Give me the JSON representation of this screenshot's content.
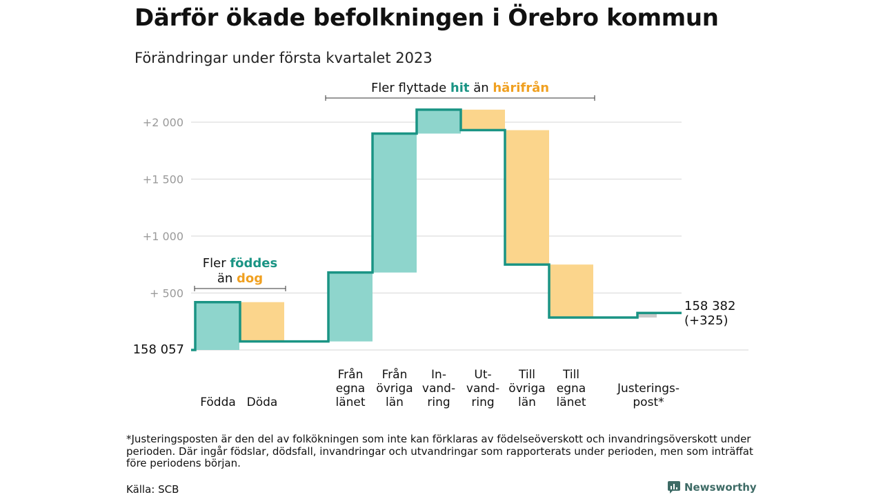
{
  "title": "Därför ökade befolkningen i Örebro kommun",
  "subtitle": "Förändringar under första kvartalet 2023",
  "footnote": "*Justeringsposten är den del av folkökningen som inte kan förklaras av födelseöverskott och invandringsöverskott under perioden. Där ingår födslar, dödsfall, invandringar och utvandringar som rapporterats under perioden, men som inträffat före periodens början.",
  "source": "Källa: SCB",
  "brand": "Newsworthy",
  "colors": {
    "inflow": "#8ed5cc",
    "outflow": "#fbd58c",
    "line": "#1a9484",
    "adjust": "#c9c9c9",
    "accent_green": "#1a9484",
    "accent_orange": "#f0a020",
    "grid": "#dddddd"
  },
  "chart_data": {
    "type": "waterfall",
    "baseline_value": 158057,
    "baseline_label": "158 057",
    "end_label_line1": "158 382",
    "end_label_line2": "(+325)",
    "ylim": [
      0,
      2100
    ],
    "yticks": [
      {
        "value": 500,
        "label": "+ 500"
      },
      {
        "value": 1000,
        "label": "+1 000"
      },
      {
        "value": 1500,
        "label": "+1 500"
      },
      {
        "value": 2000,
        "label": "+2 000"
      }
    ],
    "steps": [
      {
        "label": [
          "Födda"
        ],
        "kind": "in",
        "value": 420
      },
      {
        "label": [
          "Döda"
        ],
        "kind": "out",
        "value": -345
      },
      {
        "label": [
          "Från",
          "egna",
          "länet"
        ],
        "kind": "in",
        "value": 605
      },
      {
        "label": [
          "Från",
          "övriga",
          "län"
        ],
        "kind": "in",
        "value": 1220
      },
      {
        "label": [
          "In-",
          "vand-",
          "ring"
        ],
        "kind": "in",
        "value": 210
      },
      {
        "label": [
          "Ut-",
          "vand-",
          "ring"
        ],
        "kind": "out",
        "value": -180
      },
      {
        "label": [
          "Till",
          "övriga",
          "län"
        ],
        "kind": "out",
        "value": -1180
      },
      {
        "label": [
          "Till",
          "egna",
          "länet"
        ],
        "kind": "out",
        "value": -465
      },
      {
        "label": [
          "Justerings-",
          "post*"
        ],
        "kind": "adjust",
        "value": 40
      }
    ],
    "annotations": [
      {
        "parts": [
          {
            "text": "Fler ",
            "style": "plain"
          },
          {
            "text": "föddes",
            "style": "green"
          }
        ]
      },
      {
        "parts": [
          {
            "text": "än ",
            "style": "plain"
          },
          {
            "text": "dog",
            "style": "orange"
          }
        ]
      },
      {
        "parts": [
          {
            "text": "Fler flyttade ",
            "style": "plain"
          },
          {
            "text": "hit",
            "style": "green"
          },
          {
            "text": " än ",
            "style": "plain"
          },
          {
            "text": "härifrån",
            "style": "orange"
          }
        ]
      }
    ]
  }
}
